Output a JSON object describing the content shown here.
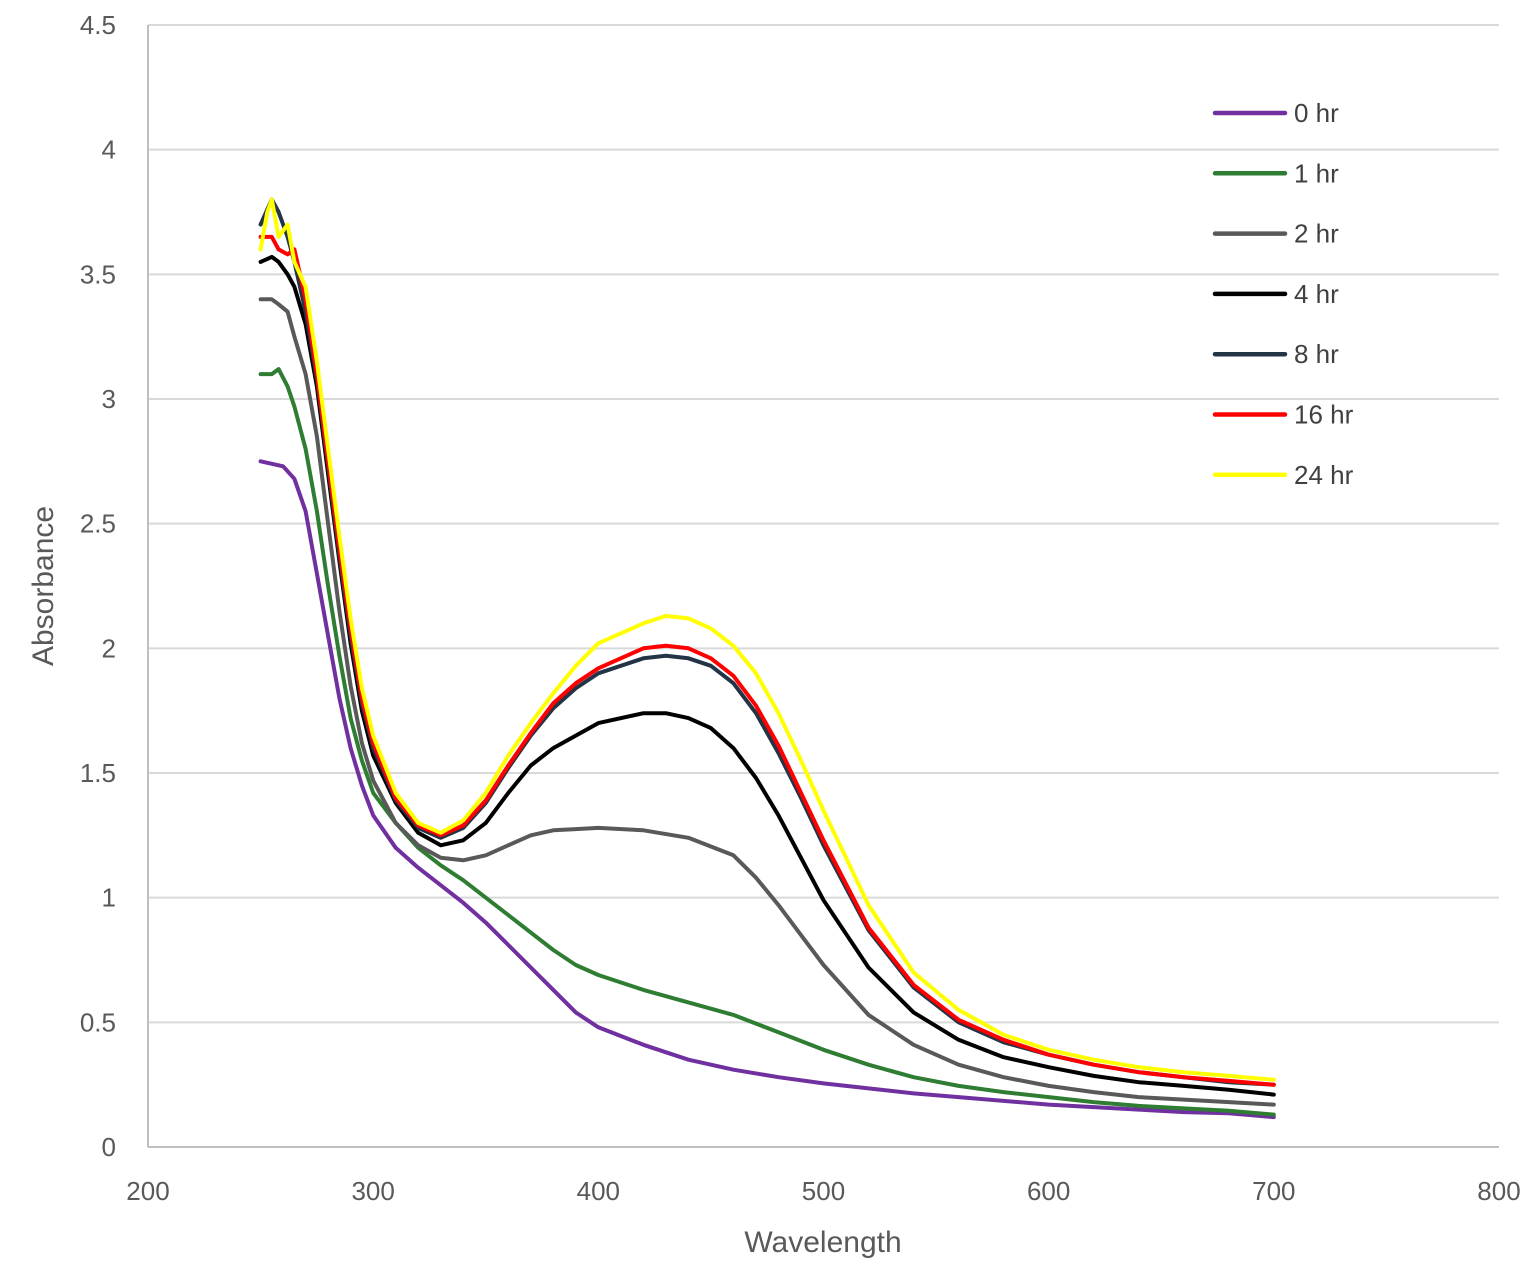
{
  "chart_data": {
    "type": "line",
    "title": "",
    "xlabel": "Wavelength",
    "ylabel": "Absorbance",
    "xlim": [
      200,
      800
    ],
    "ylim": [
      0,
      4.5
    ],
    "x_ticks": [
      200,
      300,
      400,
      500,
      600,
      700,
      800
    ],
    "y_ticks": [
      0,
      0.5,
      1,
      1.5,
      2,
      2.5,
      3,
      3.5,
      4,
      4.5
    ],
    "x_tick_labels": [
      "200",
      "300",
      "400",
      "500",
      "600",
      "700",
      "800"
    ],
    "y_tick_labels": [
      "0",
      "0.5",
      "1",
      "1.5",
      "2",
      "2.5",
      "3",
      "3.5",
      "4",
      "4.5"
    ],
    "grid": "horizontal major gridlines",
    "legend_position": "top-right",
    "series": [
      {
        "name": "0 hr",
        "color": "#7030A0",
        "points": [
          [
            250,
            2.75
          ],
          [
            260,
            2.73
          ],
          [
            265,
            2.68
          ],
          [
            270,
            2.55
          ],
          [
            275,
            2.3
          ],
          [
            280,
            2.05
          ],
          [
            285,
            1.8
          ],
          [
            290,
            1.6
          ],
          [
            295,
            1.45
          ],
          [
            300,
            1.33
          ],
          [
            310,
            1.2
          ],
          [
            320,
            1.12
          ],
          [
            330,
            1.05
          ],
          [
            340,
            0.98
          ],
          [
            350,
            0.9
          ],
          [
            360,
            0.81
          ],
          [
            370,
            0.72
          ],
          [
            380,
            0.63
          ],
          [
            390,
            0.54
          ],
          [
            400,
            0.48
          ],
          [
            420,
            0.41
          ],
          [
            440,
            0.35
          ],
          [
            460,
            0.31
          ],
          [
            480,
            0.28
          ],
          [
            500,
            0.255
          ],
          [
            520,
            0.235
          ],
          [
            540,
            0.215
          ],
          [
            560,
            0.2
          ],
          [
            580,
            0.185
          ],
          [
            600,
            0.17
          ],
          [
            620,
            0.16
          ],
          [
            640,
            0.15
          ],
          [
            660,
            0.14
          ],
          [
            680,
            0.135
          ],
          [
            700,
            0.12
          ]
        ]
      },
      {
        "name": "1 hr",
        "color": "#2E7D32",
        "points": [
          [
            250,
            3.1
          ],
          [
            255,
            3.1
          ],
          [
            258,
            3.12
          ],
          [
            262,
            3.05
          ],
          [
            265,
            2.97
          ],
          [
            270,
            2.8
          ],
          [
            275,
            2.55
          ],
          [
            280,
            2.25
          ],
          [
            285,
            1.97
          ],
          [
            290,
            1.72
          ],
          [
            295,
            1.55
          ],
          [
            300,
            1.42
          ],
          [
            310,
            1.3
          ],
          [
            320,
            1.2
          ],
          [
            330,
            1.13
          ],
          [
            340,
            1.07
          ],
          [
            350,
            1.0
          ],
          [
            360,
            0.93
          ],
          [
            370,
            0.86
          ],
          [
            380,
            0.79
          ],
          [
            390,
            0.73
          ],
          [
            400,
            0.69
          ],
          [
            420,
            0.63
          ],
          [
            440,
            0.58
          ],
          [
            460,
            0.53
          ],
          [
            480,
            0.46
          ],
          [
            500,
            0.39
          ],
          [
            520,
            0.33
          ],
          [
            540,
            0.28
          ],
          [
            560,
            0.245
          ],
          [
            580,
            0.22
          ],
          [
            600,
            0.2
          ],
          [
            620,
            0.18
          ],
          [
            640,
            0.165
          ],
          [
            660,
            0.155
          ],
          [
            680,
            0.145
          ],
          [
            700,
            0.13
          ]
        ]
      },
      {
        "name": "2 hr",
        "color": "#595959",
        "points": [
          [
            250,
            3.4
          ],
          [
            255,
            3.4
          ],
          [
            258,
            3.38
          ],
          [
            262,
            3.35
          ],
          [
            265,
            3.25
          ],
          [
            270,
            3.1
          ],
          [
            275,
            2.85
          ],
          [
            280,
            2.5
          ],
          [
            285,
            2.15
          ],
          [
            290,
            1.85
          ],
          [
            295,
            1.62
          ],
          [
            300,
            1.47
          ],
          [
            310,
            1.3
          ],
          [
            320,
            1.21
          ],
          [
            330,
            1.16
          ],
          [
            340,
            1.15
          ],
          [
            350,
            1.17
          ],
          [
            360,
            1.21
          ],
          [
            370,
            1.25
          ],
          [
            380,
            1.27
          ],
          [
            390,
            1.275
          ],
          [
            400,
            1.28
          ],
          [
            420,
            1.27
          ],
          [
            440,
            1.24
          ],
          [
            460,
            1.17
          ],
          [
            470,
            1.08
          ],
          [
            480,
            0.97
          ],
          [
            490,
            0.85
          ],
          [
            500,
            0.73
          ],
          [
            520,
            0.53
          ],
          [
            540,
            0.41
          ],
          [
            560,
            0.33
          ],
          [
            580,
            0.28
          ],
          [
            600,
            0.245
          ],
          [
            620,
            0.22
          ],
          [
            640,
            0.2
          ],
          [
            660,
            0.19
          ],
          [
            680,
            0.18
          ],
          [
            700,
            0.17
          ]
        ]
      },
      {
        "name": "4 hr",
        "color": "#000000",
        "points": [
          [
            250,
            3.55
          ],
          [
            255,
            3.57
          ],
          [
            258,
            3.55
          ],
          [
            262,
            3.5
          ],
          [
            265,
            3.45
          ],
          [
            270,
            3.3
          ],
          [
            275,
            3.05
          ],
          [
            280,
            2.7
          ],
          [
            285,
            2.35
          ],
          [
            290,
            2.02
          ],
          [
            295,
            1.75
          ],
          [
            300,
            1.57
          ],
          [
            310,
            1.38
          ],
          [
            320,
            1.26
          ],
          [
            330,
            1.21
          ],
          [
            340,
            1.23
          ],
          [
            350,
            1.3
          ],
          [
            360,
            1.42
          ],
          [
            370,
            1.53
          ],
          [
            380,
            1.6
          ],
          [
            390,
            1.65
          ],
          [
            400,
            1.7
          ],
          [
            420,
            1.74
          ],
          [
            430,
            1.74
          ],
          [
            440,
            1.72
          ],
          [
            450,
            1.68
          ],
          [
            460,
            1.6
          ],
          [
            470,
            1.48
          ],
          [
            480,
            1.33
          ],
          [
            490,
            1.16
          ],
          [
            500,
            0.99
          ],
          [
            520,
            0.72
          ],
          [
            540,
            0.54
          ],
          [
            560,
            0.43
          ],
          [
            580,
            0.36
          ],
          [
            600,
            0.32
          ],
          [
            620,
            0.285
          ],
          [
            640,
            0.26
          ],
          [
            660,
            0.245
          ],
          [
            680,
            0.23
          ],
          [
            700,
            0.21
          ]
        ]
      },
      {
        "name": "8 hr",
        "color": "#243447",
        "points": [
          [
            250,
            3.7
          ],
          [
            255,
            3.8
          ],
          [
            258,
            3.75
          ],
          [
            262,
            3.65
          ],
          [
            265,
            3.55
          ],
          [
            270,
            3.35
          ],
          [
            275,
            3.08
          ],
          [
            280,
            2.73
          ],
          [
            285,
            2.37
          ],
          [
            290,
            2.05
          ],
          [
            295,
            1.78
          ],
          [
            300,
            1.6
          ],
          [
            310,
            1.39
          ],
          [
            320,
            1.28
          ],
          [
            330,
            1.24
          ],
          [
            340,
            1.28
          ],
          [
            350,
            1.38
          ],
          [
            360,
            1.52
          ],
          [
            370,
            1.65
          ],
          [
            380,
            1.76
          ],
          [
            390,
            1.84
          ],
          [
            400,
            1.9
          ],
          [
            420,
            1.96
          ],
          [
            430,
            1.97
          ],
          [
            440,
            1.96
          ],
          [
            450,
            1.93
          ],
          [
            460,
            1.86
          ],
          [
            470,
            1.74
          ],
          [
            480,
            1.58
          ],
          [
            490,
            1.4
          ],
          [
            500,
            1.21
          ],
          [
            520,
            0.87
          ],
          [
            540,
            0.64
          ],
          [
            560,
            0.5
          ],
          [
            580,
            0.42
          ],
          [
            600,
            0.37
          ],
          [
            620,
            0.33
          ],
          [
            640,
            0.3
          ],
          [
            660,
            0.28
          ],
          [
            680,
            0.26
          ],
          [
            700,
            0.25
          ]
        ]
      },
      {
        "name": "16 hr",
        "color": "#FF0000",
        "points": [
          [
            250,
            3.65
          ],
          [
            255,
            3.65
          ],
          [
            258,
            3.6
          ],
          [
            262,
            3.58
          ],
          [
            265,
            3.6
          ],
          [
            270,
            3.4
          ],
          [
            275,
            3.1
          ],
          [
            280,
            2.75
          ],
          [
            285,
            2.4
          ],
          [
            290,
            2.08
          ],
          [
            295,
            1.8
          ],
          [
            300,
            1.62
          ],
          [
            310,
            1.4
          ],
          [
            320,
            1.29
          ],
          [
            330,
            1.25
          ],
          [
            340,
            1.29
          ],
          [
            350,
            1.39
          ],
          [
            360,
            1.53
          ],
          [
            370,
            1.66
          ],
          [
            380,
            1.78
          ],
          [
            390,
            1.86
          ],
          [
            400,
            1.92
          ],
          [
            420,
            2.0
          ],
          [
            430,
            2.01
          ],
          [
            440,
            2.0
          ],
          [
            450,
            1.96
          ],
          [
            460,
            1.89
          ],
          [
            470,
            1.77
          ],
          [
            480,
            1.61
          ],
          [
            490,
            1.42
          ],
          [
            500,
            1.23
          ],
          [
            520,
            0.88
          ],
          [
            540,
            0.65
          ],
          [
            560,
            0.51
          ],
          [
            580,
            0.43
          ],
          [
            600,
            0.37
          ],
          [
            620,
            0.33
          ],
          [
            640,
            0.3
          ],
          [
            660,
            0.28
          ],
          [
            680,
            0.265
          ],
          [
            700,
            0.25
          ]
        ]
      },
      {
        "name": "24 hr",
        "color": "#FFFF00",
        "points": [
          [
            250,
            3.6
          ],
          [
            253,
            3.75
          ],
          [
            255,
            3.8
          ],
          [
            258,
            3.65
          ],
          [
            262,
            3.7
          ],
          [
            265,
            3.55
          ],
          [
            270,
            3.45
          ],
          [
            275,
            3.15
          ],
          [
            280,
            2.8
          ],
          [
            285,
            2.45
          ],
          [
            290,
            2.12
          ],
          [
            295,
            1.84
          ],
          [
            300,
            1.65
          ],
          [
            310,
            1.42
          ],
          [
            320,
            1.3
          ],
          [
            330,
            1.26
          ],
          [
            340,
            1.31
          ],
          [
            350,
            1.42
          ],
          [
            360,
            1.57
          ],
          [
            370,
            1.7
          ],
          [
            380,
            1.82
          ],
          [
            390,
            1.93
          ],
          [
            400,
            2.02
          ],
          [
            420,
            2.1
          ],
          [
            430,
            2.13
          ],
          [
            440,
            2.12
          ],
          [
            450,
            2.08
          ],
          [
            460,
            2.01
          ],
          [
            470,
            1.9
          ],
          [
            480,
            1.74
          ],
          [
            490,
            1.55
          ],
          [
            500,
            1.35
          ],
          [
            520,
            0.97
          ],
          [
            540,
            0.7
          ],
          [
            560,
            0.55
          ],
          [
            580,
            0.45
          ],
          [
            600,
            0.39
          ],
          [
            620,
            0.35
          ],
          [
            640,
            0.32
          ],
          [
            660,
            0.3
          ],
          [
            680,
            0.285
          ],
          [
            700,
            0.27
          ]
        ]
      }
    ]
  }
}
